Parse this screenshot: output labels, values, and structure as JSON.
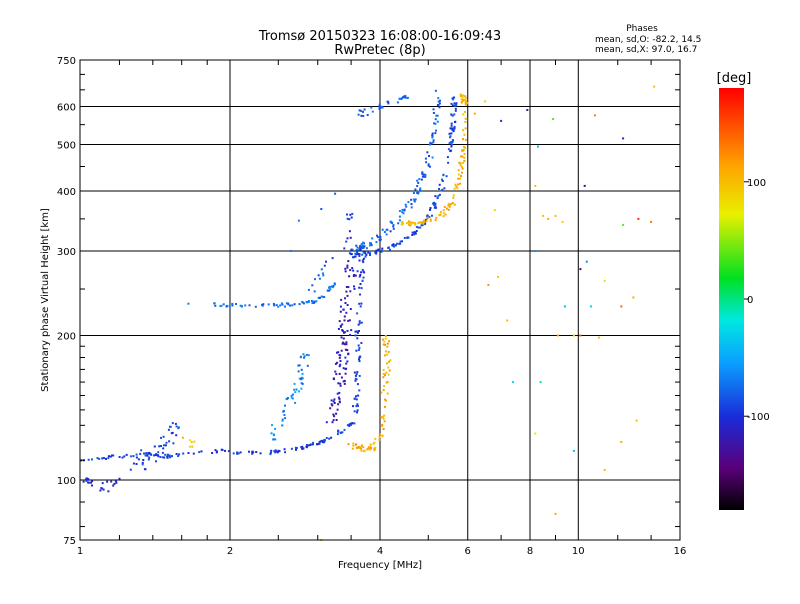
{
  "chart_data": {
    "type": "scatter",
    "title": "Tromsø 20150323 16:08:00-16:09:43",
    "subtitle": "RwPretec (8p)",
    "xlabel": "Frequency [MHz]",
    "ylabel": "Stationary phase Virtual Height [km]",
    "x_scale": "log",
    "y_scale": "log",
    "xlim": [
      1,
      16
    ],
    "ylim": [
      75,
      750
    ],
    "x_ticks": [
      {
        "value": 1,
        "label": "1"
      },
      {
        "value": 2,
        "label": "2"
      },
      {
        "value": 4,
        "label": "4"
      },
      {
        "value": 6,
        "label": "6"
      },
      {
        "value": 8,
        "label": "8"
      },
      {
        "value": 10,
        "label": "10"
      },
      {
        "value": 16,
        "label": "16"
      }
    ],
    "x_minor_ticks": [
      1.2,
      1.4,
      1.6,
      1.8,
      2.5,
      3,
      3.5,
      5,
      7,
      9,
      12,
      14
    ],
    "y_ticks": [
      {
        "value": 75,
        "label": "75"
      },
      {
        "value": 100,
        "label": "100"
      },
      {
        "value": 200,
        "label": "200"
      },
      {
        "value": 300,
        "label": "300"
      },
      {
        "value": 400,
        "label": "400"
      },
      {
        "value": 500,
        "label": "500"
      },
      {
        "value": 600,
        "label": "600"
      },
      {
        "value": 750,
        "label": "750"
      }
    ],
    "y_minor_ticks": [
      80,
      90,
      110,
      120,
      130,
      140,
      150,
      160,
      170,
      180,
      190,
      250,
      350,
      450,
      550,
      650,
      700
    ],
    "grid_x": [
      2,
      4,
      6,
      8,
      10
    ],
    "grid_y": [
      100,
      200,
      300,
      400,
      500,
      600
    ],
    "phases_box": {
      "title": "Phases",
      "line_o": "mean, sd,O: -82.2, 14.5",
      "line_x": "mean, sd,X:  97.0, 16.7"
    },
    "colorbar": {
      "label": "[deg]",
      "range": [
        -180,
        180
      ],
      "ticks": [
        {
          "value": 100,
          "label": "100"
        },
        {
          "value": 0,
          "label": "0"
        },
        {
          "value": -100,
          "label": "-100"
        }
      ]
    },
    "segments": [
      {
        "points": [
          [
            1.0,
            110
          ],
          [
            1.1,
            111
          ],
          [
            1.2,
            112
          ],
          [
            1.35,
            113
          ],
          [
            1.5,
            112
          ],
          [
            1.7,
            114
          ],
          [
            1.9,
            115
          ],
          [
            2.1,
            114
          ],
          [
            2.4,
            114
          ],
          [
            2.7,
            116
          ],
          [
            2.9,
            118
          ],
          [
            3.05,
            120
          ],
          [
            3.2,
            123
          ],
          [
            3.4,
            128
          ],
          [
            3.55,
            132
          ]
        ],
        "phase": -95,
        "count": 140,
        "jitter": 0.008
      },
      {
        "points": [
          [
            1.0,
            100
          ],
          [
            1.06,
            98
          ],
          [
            1.12,
            96
          ],
          [
            1.18,
            99
          ]
        ],
        "phase": -105,
        "count": 25,
        "jitter": 0.02
      },
      {
        "points": [
          [
            1.3,
            108
          ],
          [
            1.38,
            112
          ],
          [
            1.45,
            116
          ],
          [
            1.52,
            124
          ],
          [
            1.58,
            132
          ]
        ],
        "phase": -90,
        "count": 45,
        "jitter": 0.035
      },
      {
        "points": [
          [
            1.62,
            122
          ],
          [
            1.68,
            118
          ]
        ],
        "phase": 95,
        "count": 6,
        "jitter": 0.02
      },
      {
        "points": [
          [
            1.85,
            232
          ],
          [
            2.1,
            231
          ],
          [
            2.4,
            231
          ],
          [
            2.7,
            232
          ],
          [
            2.95,
            235
          ],
          [
            3.1,
            243
          ],
          [
            3.25,
            258
          ]
        ],
        "phase": -75,
        "count": 70,
        "jitter": 0.008
      },
      {
        "points": [
          [
            2.9,
            246
          ],
          [
            3.0,
            262
          ],
          [
            3.1,
            278
          ],
          [
            3.2,
            292
          ]
        ],
        "phase": -80,
        "count": 12,
        "jitter": 0.02
      },
      {
        "points": [
          [
            2.4,
            122
          ],
          [
            2.5,
            130
          ],
          [
            2.6,
            140
          ],
          [
            2.7,
            152
          ],
          [
            2.78,
            165
          ]
        ],
        "phase": -60,
        "count": 35,
        "jitter": 0.02
      },
      {
        "points": [
          [
            2.75,
            158
          ],
          [
            2.8,
            172
          ],
          [
            2.85,
            185
          ]
        ],
        "phase": -70,
        "count": 15,
        "jitter": 0.02
      },
      {
        "points": [
          [
            3.2,
            130
          ],
          [
            3.28,
            150
          ],
          [
            3.35,
            175
          ],
          [
            3.4,
            200
          ],
          [
            3.45,
            240
          ],
          [
            3.5,
            290
          ]
        ],
        "phase": -115,
        "count": 110,
        "jitter": 0.03
      },
      {
        "points": [
          [
            3.55,
            130
          ],
          [
            3.6,
            160
          ],
          [
            3.62,
            200
          ],
          [
            3.65,
            260
          ],
          [
            3.7,
            310
          ]
        ],
        "phase": -95,
        "count": 70,
        "jitter": 0.015
      },
      {
        "points": [
          [
            3.5,
            118
          ],
          [
            3.7,
            116
          ],
          [
            3.9,
            117
          ],
          [
            4.0,
            122
          ],
          [
            4.05,
            140
          ],
          [
            4.1,
            160
          ],
          [
            4.15,
            180
          ],
          [
            4.1,
            200
          ]
        ],
        "phase": 108,
        "count": 80,
        "jitter": 0.015
      },
      {
        "points": [
          [
            3.5,
            292
          ],
          [
            3.8,
            296
          ],
          [
            4.2,
            305
          ],
          [
            4.6,
            322
          ],
          [
            5.0,
            350
          ],
          [
            5.3,
            400
          ],
          [
            5.5,
            470
          ],
          [
            5.6,
            550
          ],
          [
            5.65,
            640
          ]
        ],
        "phase": -90,
        "count": 150,
        "jitter": 0.012
      },
      {
        "points": [
          [
            3.5,
            300
          ],
          [
            3.9,
            315
          ],
          [
            4.3,
            345
          ],
          [
            4.7,
            390
          ],
          [
            5.0,
            460
          ],
          [
            5.15,
            550
          ],
          [
            5.25,
            640
          ]
        ],
        "phase": -80,
        "count": 120,
        "jitter": 0.015
      },
      {
        "points": [
          [
            3.45,
            300
          ],
          [
            3.48,
            330
          ],
          [
            3.5,
            360
          ]
        ],
        "phase": -100,
        "count": 12,
        "jitter": 0.02
      },
      {
        "points": [
          [
            4.4,
            340
          ],
          [
            4.8,
            345
          ],
          [
            5.3,
            355
          ],
          [
            5.6,
            380
          ],
          [
            5.8,
            430
          ],
          [
            5.9,
            500
          ],
          [
            5.95,
            600
          ],
          [
            5.85,
            640
          ]
        ],
        "phase": 105,
        "count": 110,
        "jitter": 0.012
      },
      {
        "points": [
          [
            3.85,
            590
          ],
          [
            4.1,
            605
          ],
          [
            4.4,
            620
          ],
          [
            4.6,
            640
          ]
        ],
        "phase": -75,
        "count": 25,
        "jitter": 0.01
      },
      {
        "points": [
          [
            3.65,
            580
          ],
          [
            3.75,
            585
          ]
        ],
        "phase": -80,
        "count": 8,
        "jitter": 0.015
      }
    ],
    "scatter_points": [
      [
        1.65,
        233,
        -70
      ],
      [
        2.65,
        300,
        -70
      ],
      [
        2.75,
        347,
        -70
      ],
      [
        3.05,
        367,
        -85
      ],
      [
        3.25,
        395,
        -85
      ],
      [
        7.2,
        215,
        100
      ],
      [
        7.4,
        160,
        -30
      ],
      [
        6.6,
        255,
        120
      ],
      [
        6.9,
        265,
        90
      ],
      [
        8.2,
        300,
        -60
      ],
      [
        8.2,
        410,
        100
      ],
      [
        8.5,
        355,
        95
      ],
      [
        8.7,
        350,
        110
      ],
      [
        9.0,
        355,
        100
      ],
      [
        9.3,
        345,
        90
      ],
      [
        10.1,
        275,
        -140
      ],
      [
        10.4,
        285,
        -60
      ],
      [
        10.3,
        410,
        -140
      ],
      [
        10.8,
        575,
        130
      ],
      [
        12.3,
        515,
        -110
      ],
      [
        12.3,
        340,
        40
      ],
      [
        13.2,
        350,
        160
      ],
      [
        14.0,
        345,
        130
      ],
      [
        14.2,
        660,
        100
      ],
      [
        12.9,
        240,
        110
      ],
      [
        12.2,
        230,
        140
      ],
      [
        10.6,
        230,
        -30
      ],
      [
        10.1,
        200,
        140
      ],
      [
        9.4,
        230,
        -40
      ],
      [
        8.4,
        160,
        -10
      ],
      [
        8.2,
        125,
        80
      ],
      [
        9.1,
        200,
        115
      ],
      [
        9.8,
        200,
        90
      ],
      [
        11.0,
        198,
        100
      ],
      [
        11.3,
        105,
        100
      ],
      [
        12.2,
        120,
        110
      ],
      [
        13.1,
        133,
        100
      ],
      [
        9.0,
        85,
        110
      ],
      [
        9.8,
        115,
        -40
      ],
      [
        11.3,
        260,
        80
      ],
      [
        7.9,
        590,
        -110
      ],
      [
        8.3,
        495,
        -40
      ],
      [
        8.9,
        565,
        40
      ],
      [
        6.5,
        615,
        90
      ],
      [
        7.0,
        560,
        -100
      ],
      [
        6.2,
        580,
        110
      ],
      [
        6.8,
        365,
        85
      ],
      [
        3.05,
        75,
        100
      ]
    ]
  }
}
